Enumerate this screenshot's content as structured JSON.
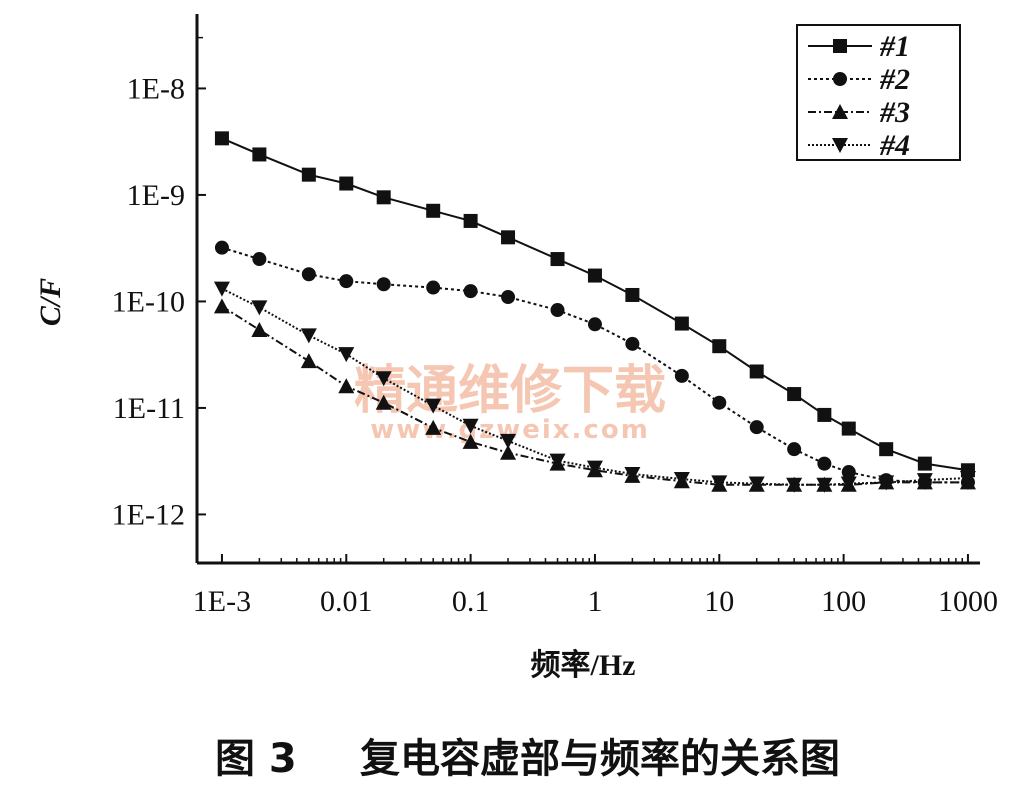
{
  "chart_data": {
    "type": "line",
    "xscale": "log",
    "yscale": "log",
    "xlabel": "频率/Hz",
    "ylabel": "C/F",
    "xlim": [
      0.00063,
      1250
    ],
    "ylim": [
      3.5e-13,
      5e-08
    ],
    "x_ticks": [
      {
        "value": 0.001,
        "label": "1E-3"
      },
      {
        "value": 0.01,
        "label": "0.01"
      },
      {
        "value": 0.1,
        "label": "0.1"
      },
      {
        "value": 1,
        "label": "1"
      },
      {
        "value": 10,
        "label": "10"
      },
      {
        "value": 100,
        "label": "100"
      },
      {
        "value": 1000,
        "label": "1000"
      }
    ],
    "y_ticks": [
      {
        "value": 1e-08,
        "label": "1E-8"
      },
      {
        "value": 1e-09,
        "label": "1E-9"
      },
      {
        "value": 1e-10,
        "label": "1E-10"
      },
      {
        "value": 1e-11,
        "label": "1E-11"
      },
      {
        "value": 1e-12,
        "label": "1E-12"
      }
    ],
    "grid": false,
    "legend_position": "top-right",
    "series": [
      {
        "name": "#1",
        "marker": "square",
        "dash": "",
        "points": [
          [
            0.001,
            3.4e-09
          ],
          [
            0.002,
            2.4e-09
          ],
          [
            0.005,
            1.55e-09
          ],
          [
            0.01,
            1.28e-09
          ],
          [
            0.02,
            9.5e-10
          ],
          [
            0.05,
            7.1e-10
          ],
          [
            0.1,
            5.7e-10
          ],
          [
            0.2,
            4e-10
          ],
          [
            0.5,
            2.5e-10
          ],
          [
            1,
            1.75e-10
          ],
          [
            2,
            1.15e-10
          ],
          [
            5,
            6.2e-11
          ],
          [
            10,
            3.8e-11
          ],
          [
            20,
            2.2e-11
          ],
          [
            40,
            1.35e-11
          ],
          [
            70,
            8.6e-12
          ],
          [
            110,
            6.4e-12
          ],
          [
            220,
            4.1e-12
          ],
          [
            450,
            3e-12
          ],
          [
            1000,
            2.6e-12
          ]
        ]
      },
      {
        "name": "#2",
        "marker": "circle",
        "dash": "3,3",
        "points": [
          [
            0.001,
            3.2e-10
          ],
          [
            0.002,
            2.5e-10
          ],
          [
            0.005,
            1.8e-10
          ],
          [
            0.01,
            1.55e-10
          ],
          [
            0.02,
            1.45e-10
          ],
          [
            0.05,
            1.35e-10
          ],
          [
            0.1,
            1.25e-10
          ],
          [
            0.2,
            1.1e-10
          ],
          [
            0.5,
            8.3e-11
          ],
          [
            1,
            6.1e-11
          ],
          [
            2,
            4e-11
          ],
          [
            5,
            2e-11
          ],
          [
            10,
            1.12e-11
          ],
          [
            20,
            6.6e-12
          ],
          [
            40,
            4.1e-12
          ],
          [
            70,
            3e-12
          ],
          [
            110,
            2.5e-12
          ],
          [
            220,
            2.1e-12
          ],
          [
            450,
            2e-12
          ],
          [
            1000,
            2e-12
          ]
        ]
      },
      {
        "name": "#3",
        "marker": "triangle-up",
        "dash": "8,3,2,3",
        "points": [
          [
            0.001,
            9e-11
          ],
          [
            0.002,
            5.4e-11
          ],
          [
            0.005,
            2.75e-11
          ],
          [
            0.01,
            1.6e-11
          ],
          [
            0.02,
            1.12e-11
          ],
          [
            0.05,
            6.5e-12
          ],
          [
            0.1,
            4.8e-12
          ],
          [
            0.2,
            3.8e-12
          ],
          [
            0.5,
            3e-12
          ],
          [
            1,
            2.6e-12
          ],
          [
            2,
            2.3e-12
          ],
          [
            5,
            2.05e-12
          ],
          [
            10,
            1.9e-12
          ],
          [
            20,
            1.9e-12
          ],
          [
            40,
            1.9e-12
          ],
          [
            70,
            1.9e-12
          ],
          [
            110,
            1.9e-12
          ],
          [
            220,
            2e-12
          ],
          [
            450,
            2e-12
          ],
          [
            1000,
            2e-12
          ]
        ]
      },
      {
        "name": "#4",
        "marker": "triangle-down",
        "dash": "2,2",
        "points": [
          [
            0.001,
            1.32e-10
          ],
          [
            0.002,
            8.8e-11
          ],
          [
            0.005,
            4.8e-11
          ],
          [
            0.01,
            3.2e-11
          ],
          [
            0.02,
            1.9e-11
          ],
          [
            0.05,
            1.05e-11
          ],
          [
            0.1,
            6.8e-12
          ],
          [
            0.2,
            4.9e-12
          ],
          [
            0.5,
            3.2e-12
          ],
          [
            1,
            2.75e-12
          ],
          [
            2,
            2.4e-12
          ],
          [
            5,
            2.15e-12
          ],
          [
            10,
            2e-12
          ],
          [
            20,
            1.95e-12
          ],
          [
            40,
            1.9e-12
          ],
          [
            70,
            1.9e-12
          ],
          [
            110,
            1.95e-12
          ],
          [
            220,
            2e-12
          ],
          [
            450,
            2.1e-12
          ],
          [
            1000,
            2.2e-12
          ]
        ]
      }
    ]
  },
  "caption": {
    "number": "图 3",
    "text": "复电容虚部与频率的关系图"
  },
  "watermark": {
    "line1": "精通维修下载",
    "line2": "www.gzweix.com"
  }
}
